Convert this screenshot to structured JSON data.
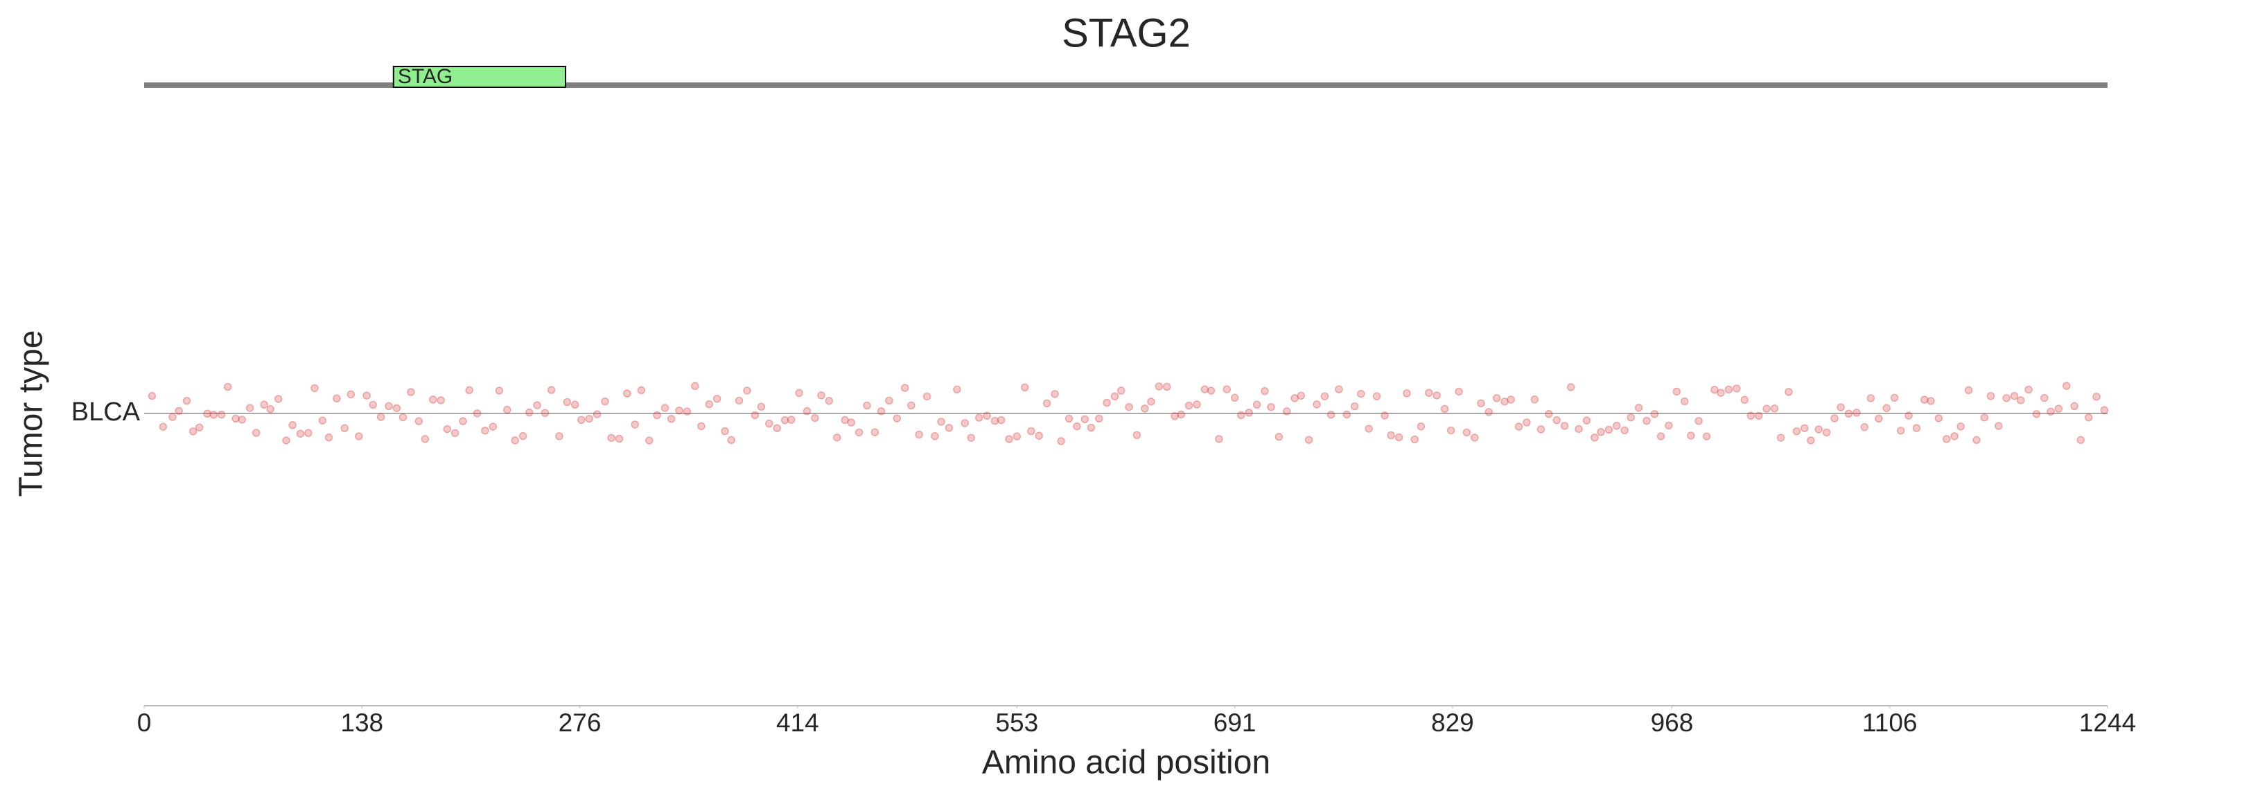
{
  "chart_data": {
    "type": "scatter",
    "title": "STAG2",
    "xlabel": "Amino acid position",
    "ylabel": "Tumor type",
    "categories": [
      "BLCA"
    ],
    "color": "#d62728",
    "xlim": [
      0,
      1244
    ],
    "xticks": [
      0,
      138,
      276,
      414,
      553,
      691,
      829,
      968,
      1106,
      1244
    ],
    "domains": [
      {
        "label": "STAG",
        "start": 158,
        "end": 267,
        "color": "#90ee90"
      }
    ],
    "x": [
      5,
      12,
      18,
      22,
      27,
      31,
      35,
      40,
      44,
      49,
      53,
      58,
      62,
      67,
      71,
      76,
      80,
      85,
      90,
      94,
      99,
      104,
      108,
      113,
      117,
      122,
      127,
      131,
      136,
      141,
      145,
      150,
      155,
      160,
      164,
      169,
      174,
      178,
      183,
      188,
      192,
      197,
      202,
      206,
      211,
      216,
      221,
      225,
      230,
      235,
      240,
      244,
      249,
      254,
      258,
      263,
      268,
      273,
      277,
      282,
      287,
      292,
      296,
      301,
      306,
      311,
      315,
      320,
      325,
      330,
      334,
      339,
      344,
      349,
      353,
      358,
      363,
      368,
      372,
      377,
      382,
      387,
      391,
      396,
      401,
      406,
      410,
      415,
      420,
      425,
      429,
      434,
      439,
      444,
      448,
      453,
      458,
      463,
      467,
      472,
      477,
      482,
      486,
      491,
      496,
      501,
      505,
      510,
      515,
      520,
      524,
      529,
      534,
      539,
      543,
      548,
      553,
      558,
      562,
      567,
      572,
      577,
      581,
      586,
      591,
      596,
      600,
      605,
      610,
      615,
      619,
      624,
      629,
      634,
      638,
      643,
      648,
      653,
      657,
      662,
      667,
      672,
      676,
      681,
      686,
      691,
      695,
      700,
      705,
      710,
      714,
      719,
      724,
      729,
      733,
      738,
      743,
      748,
      752,
      757,
      762,
      767,
      771,
      776,
      781,
      786,
      790,
      795,
      800,
      805,
      809,
      814,
      819,
      824,
      828,
      833,
      838,
      843,
      847,
      852,
      857,
      862,
      866,
      871,
      876,
      881,
      885,
      890,
      895,
      900,
      904,
      909,
      914,
      919,
      923,
      928,
      933,
      938,
      942,
      947,
      952,
      957,
      961,
      966,
      971,
      976,
      980,
      985,
      990,
      995,
      999,
      1004,
      1009,
      1014,
      1018,
      1023,
      1028,
      1033,
      1037,
      1042,
      1047,
      1052,
      1056,
      1061,
      1066,
      1071,
      1075,
      1080,
      1085,
      1090,
      1094,
      1099,
      1104,
      1109,
      1113,
      1118,
      1123,
      1128,
      1132,
      1137,
      1142,
      1147,
      1151,
      1156,
      1161,
      1166,
      1170,
      1175,
      1180,
      1185,
      1189,
      1194,
      1199,
      1204,
      1208,
      1213,
      1218,
      1223,
      1227,
      1232,
      1237,
      1242
    ]
  }
}
